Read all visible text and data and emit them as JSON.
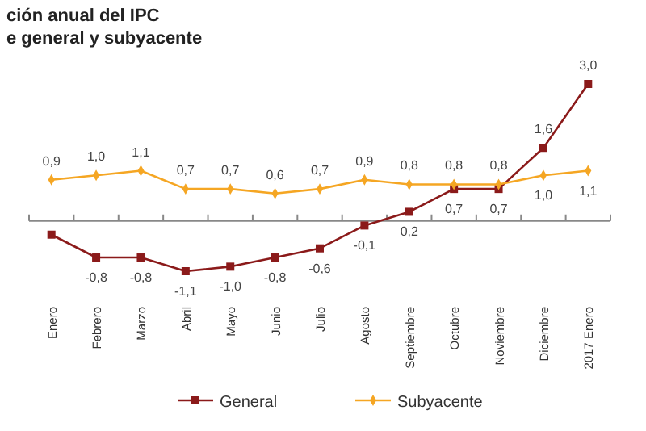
{
  "chart_data": {
    "type": "line",
    "title": "ción anual del IPC",
    "subtitle": "e general y subyacente",
    "categories": [
      "Enero",
      "Febrero",
      "Marzo",
      "Abril",
      "Mayo",
      "Junio",
      "Julio",
      "Agosto",
      "Septiembre",
      "Octubre",
      "Noviembre",
      "Diciembre",
      "2017 Enero"
    ],
    "series": [
      {
        "name": "General",
        "color": "#8b1a1a",
        "marker": "square",
        "values": [
          -0.3,
          -0.8,
          -0.8,
          -1.1,
          -1.0,
          -0.8,
          -0.6,
          -0.1,
          0.2,
          0.7,
          0.7,
          1.6,
          3.0
        ],
        "value_labels": [
          null,
          "-0,8",
          "-0,8",
          "-1,1",
          "-1,0",
          "-0,8",
          "-0,6",
          "-0,1",
          "0,2",
          "0,7",
          "0,7",
          "1,6",
          "3,0"
        ]
      },
      {
        "name": "Subyacente",
        "color": "#f5a623",
        "marker": "diamond",
        "values": [
          0.9,
          1.0,
          1.1,
          0.7,
          0.7,
          0.6,
          0.7,
          0.9,
          0.8,
          0.8,
          0.8,
          1.0,
          1.1
        ],
        "value_labels": [
          "0,9",
          "1,0",
          "1,1",
          "0,7",
          "0,7",
          "0,6",
          "0,7",
          "0,9",
          "0,8",
          "0,8",
          "0,8",
          "1,0",
          "1,1"
        ]
      }
    ],
    "legend": "bottom"
  }
}
